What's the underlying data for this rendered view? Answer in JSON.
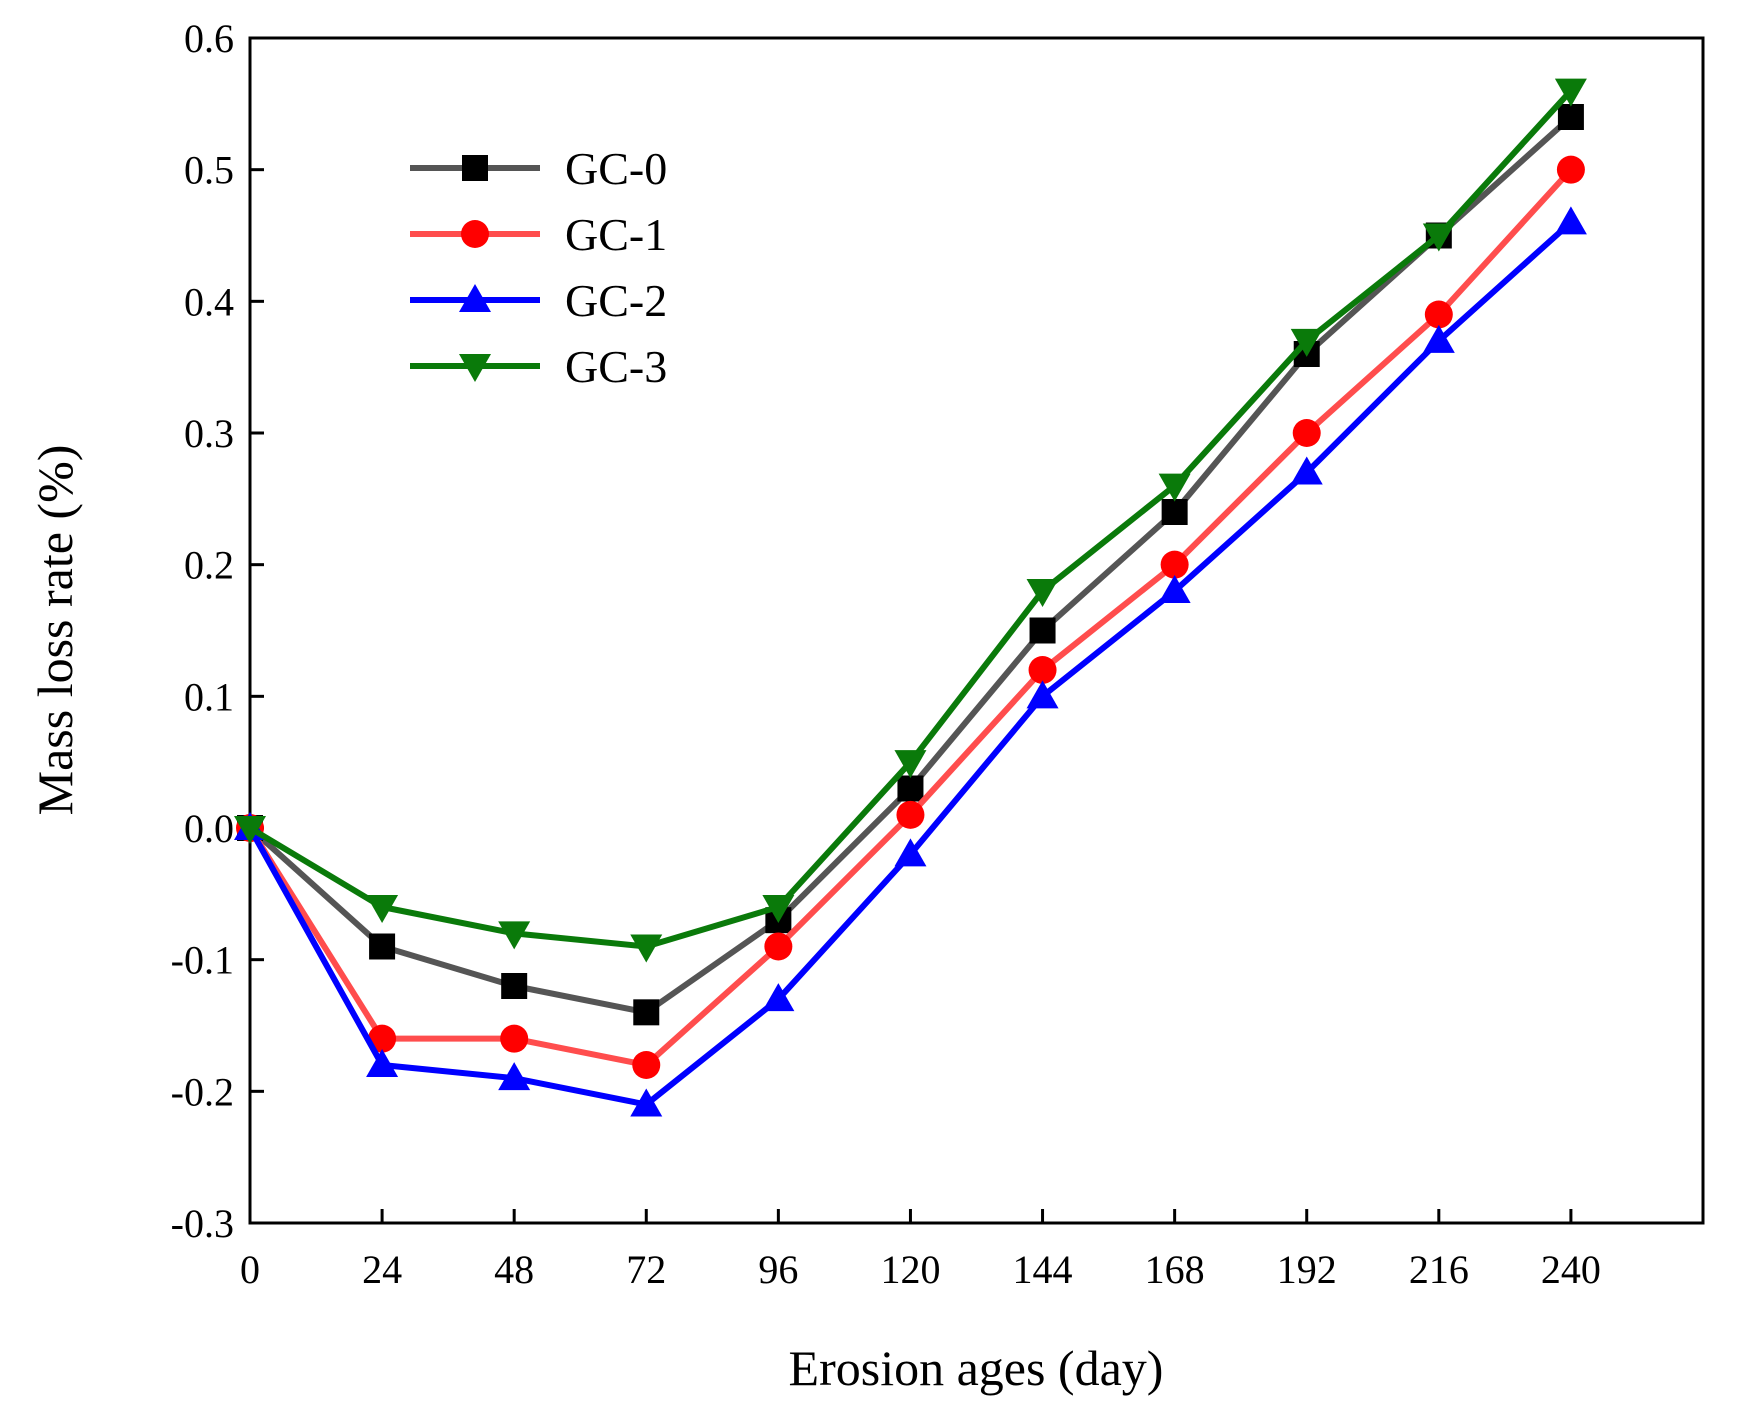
{
  "chart_data": {
    "type": "line",
    "xlabel": "Erosion ages (day)",
    "ylabel": "Mass loss rate (%)",
    "x": [
      0,
      24,
      48,
      72,
      96,
      120,
      144,
      168,
      192,
      216,
      240
    ],
    "xlim": [
      0,
      264
    ],
    "ylim": [
      -0.3,
      0.6
    ],
    "xticks": [
      0,
      24,
      48,
      72,
      96,
      120,
      144,
      168,
      192,
      216,
      240
    ],
    "xtick_labels": [
      "0",
      "24",
      "48",
      "72",
      "96",
      "120",
      "144",
      "168",
      "192",
      "216",
      "240"
    ],
    "yticks": [
      -0.3,
      -0.2,
      -0.1,
      0.0,
      0.1,
      0.2,
      0.3,
      0.4,
      0.5,
      0.6
    ],
    "ytick_labels": [
      "-0.3",
      "-0.2",
      "-0.1",
      "0.0",
      "0.1",
      "0.2",
      "0.3",
      "0.4",
      "0.5",
      "0.6"
    ],
    "grid": false,
    "legend_position": "top-left",
    "series": [
      {
        "name": "GC-0",
        "marker": "square",
        "line_color": "#555555",
        "marker_color": "#000000",
        "values": [
          0.0,
          -0.09,
          -0.12,
          -0.14,
          -0.07,
          0.03,
          0.15,
          0.24,
          0.36,
          0.45,
          0.54
        ]
      },
      {
        "name": "GC-1",
        "marker": "circle",
        "line_color": "#ff4d4d",
        "marker_color": "#ff0000",
        "values": [
          0.0,
          -0.16,
          -0.16,
          -0.18,
          -0.09,
          0.01,
          0.12,
          0.2,
          0.3,
          0.39,
          0.5
        ]
      },
      {
        "name": "GC-2",
        "marker": "triangle-up",
        "line_color": "#0000ff",
        "marker_color": "#0000ff",
        "values": [
          0.0,
          -0.18,
          -0.19,
          -0.21,
          -0.13,
          -0.02,
          0.1,
          0.18,
          0.27,
          0.37,
          0.46
        ]
      },
      {
        "name": "GC-3",
        "marker": "triangle-down",
        "line_color": "#0a7a0a",
        "marker_color": "#0a7a0a",
        "values": [
          0.0,
          -0.06,
          -0.08,
          -0.09,
          -0.06,
          0.05,
          0.18,
          0.26,
          0.37,
          0.45,
          0.56
        ]
      }
    ]
  }
}
